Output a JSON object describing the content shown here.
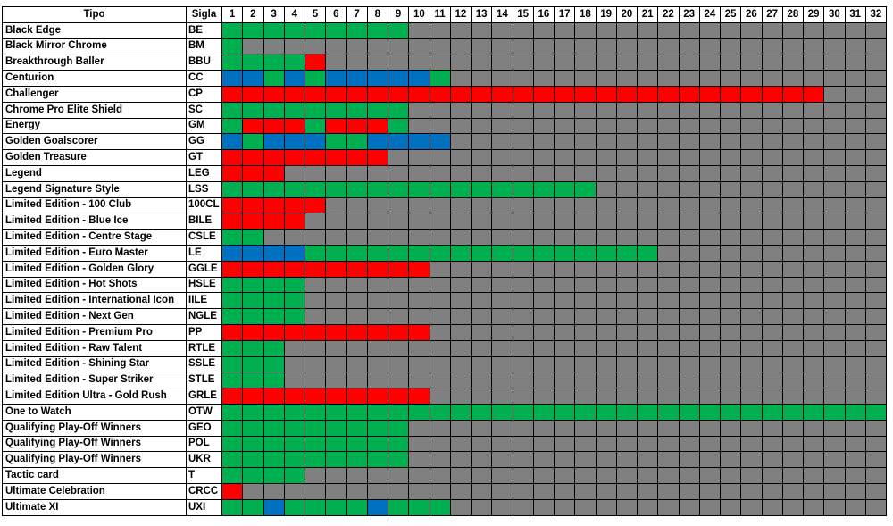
{
  "colors": {
    "G": "#00b050",
    "R": "#ff0000",
    "B": "#0070c0",
    "X": "#808080"
  },
  "legend_codes": {
    "G": "green",
    "R": "red",
    "B": "blue",
    "X": "grey"
  },
  "headers": {
    "tipo": "Tipo",
    "sigla": "Sigla",
    "columns": [
      "1",
      "2",
      "3",
      "4",
      "5",
      "6",
      "7",
      "8",
      "9",
      "10",
      "11",
      "12",
      "13",
      "14",
      "15",
      "16",
      "17",
      "18",
      "19",
      "20",
      "21",
      "22",
      "23",
      "24",
      "25",
      "26",
      "27",
      "28",
      "29",
      "30",
      "31",
      "32"
    ]
  },
  "rows": [
    {
      "tipo": "Black Edge",
      "sigla": "BE",
      "cells": "GGGGGGGGG"
    },
    {
      "tipo": "Black Mirror Chrome",
      "sigla": "BM",
      "cells": "G"
    },
    {
      "tipo": "Breakthrough Baller",
      "sigla": "BBU",
      "cells": "GGGGR"
    },
    {
      "tipo": "Centurion",
      "sigla": "CC",
      "cells": "BBGBGBBBBBG"
    },
    {
      "tipo": "Challenger",
      "sigla": "CP",
      "cells": "RRRRRRRRRRRRRRRRRRRRRRRRRRRRR"
    },
    {
      "tipo": "Chrome Pro Elite Shield",
      "sigla": "SC",
      "cells": "GGGGGGGGG"
    },
    {
      "tipo": "Energy",
      "sigla": "GM",
      "cells": "GRRRGRRRG"
    },
    {
      "tipo": "Golden Goalscorer",
      "sigla": "GG",
      "cells": "BGBBBGGBBBB"
    },
    {
      "tipo": "Golden Treasure",
      "sigla": "GT",
      "cells": "RRRRRRRR"
    },
    {
      "tipo": "Legend",
      "sigla": "LEG",
      "cells": "RRR"
    },
    {
      "tipo": "Legend Signature Style",
      "sigla": "LSS",
      "cells": "GGGGGGGGGGGGGGGGGG"
    },
    {
      "tipo": "Limited Edition - 100 Club",
      "sigla": "100CL",
      "cells": "RRRRR"
    },
    {
      "tipo": "Limited Edition - Blue Ice",
      "sigla": "BILE",
      "cells": "RRRR"
    },
    {
      "tipo": "Limited Edition - Centre Stage",
      "sigla": "CSLE",
      "cells": "GG"
    },
    {
      "tipo": "Limited Edition - Euro Master",
      "sigla": "LE",
      "cells": "BBBBGGGGGGGGGGGGGGGGG"
    },
    {
      "tipo": "Limited Edition - Golden Glory",
      "sigla": "GGLE",
      "cells": "RRRRRRRRRR"
    },
    {
      "tipo": "Limited Edition - Hot Shots",
      "sigla": "HSLE",
      "cells": "GGGG"
    },
    {
      "tipo": "Limited Edition - International Icon",
      "sigla": "IILE",
      "cells": "GGGG"
    },
    {
      "tipo": "Limited Edition - Next Gen",
      "sigla": "NGLE",
      "cells": "GGGG"
    },
    {
      "tipo": "Limited Edition - Premium Pro",
      "sigla": "PP",
      "cells": "RRRRRRRRRR"
    },
    {
      "tipo": "Limited Edition - Raw Talent",
      "sigla": "RTLE",
      "cells": "GGG"
    },
    {
      "tipo": "Limited Edition - Shining Star",
      "sigla": "SSLE",
      "cells": "GGG"
    },
    {
      "tipo": "Limited Edition - Super Striker",
      "sigla": "STLE",
      "cells": "GGG"
    },
    {
      "tipo": "Limited Edition Ultra - Gold Rush",
      "sigla": "GRLE",
      "cells": "RRRRRRRRRR"
    },
    {
      "tipo": "One to Watch",
      "sigla": "OTW",
      "cells": "GGGGGGGGGGGGGGGGGGGGGGGGGGGGGGGG"
    },
    {
      "tipo": "Qualifying Play-Off Winners",
      "sigla": "GEO",
      "cells": "GGGGGGGGG"
    },
    {
      "tipo": "Qualifying Play-Off Winners",
      "sigla": "POL",
      "cells": "GGGGGGGGG"
    },
    {
      "tipo": "Qualifying Play-Off Winners",
      "sigla": "UKR",
      "cells": "GGGGGGGGG"
    },
    {
      "tipo": "Tactic card",
      "sigla": "T",
      "cells": "GGGG"
    },
    {
      "tipo": "Ultimate Celebration",
      "sigla": "CRCC",
      "cells": "R"
    },
    {
      "tipo": "Ultimate XI",
      "sigla": "UXI",
      "cells": "GGBGGGGBGGG"
    }
  ]
}
